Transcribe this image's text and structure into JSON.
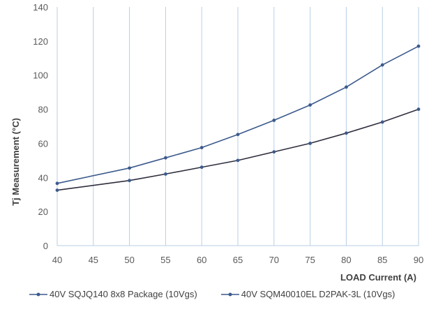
{
  "chart_data": {
    "type": "line",
    "title": "",
    "xlabel": "LOAD Current (A)",
    "ylabel": "Tj Measurement (°C)",
    "x": [
      40,
      45,
      50,
      55,
      60,
      65,
      70,
      75,
      80,
      85,
      90
    ],
    "x_ticks": [
      40,
      45,
      50,
      55,
      60,
      65,
      70,
      75,
      80,
      85,
      90
    ],
    "y_ticks": [
      0,
      20,
      40,
      60,
      80,
      100,
      120,
      140
    ],
    "xlim": [
      40,
      90
    ],
    "ylim": [
      0,
      140
    ],
    "grid": "vertical",
    "legend_position": "bottom",
    "series": [
      {
        "name": "40V SQJQ140 8x8 Package (10Vgs)",
        "color": "#3c5a8c",
        "x": [
          40,
          50,
          55,
          60,
          65,
          70,
          75,
          80,
          85,
          90
        ],
        "values": [
          36.5,
          45.5,
          51.5,
          57.5,
          65.2,
          73.5,
          82.5,
          93,
          106,
          117
        ]
      },
      {
        "name": "40V SQM40010EL D2PAK-3L (10Vgs)",
        "color": "#2e2e3e",
        "x": [
          40,
          50,
          55,
          60,
          65,
          70,
          75,
          80,
          85,
          90
        ],
        "values": [
          32.5,
          38.2,
          42,
          46,
          50,
          55,
          60,
          66,
          72.5,
          80
        ]
      }
    ]
  }
}
